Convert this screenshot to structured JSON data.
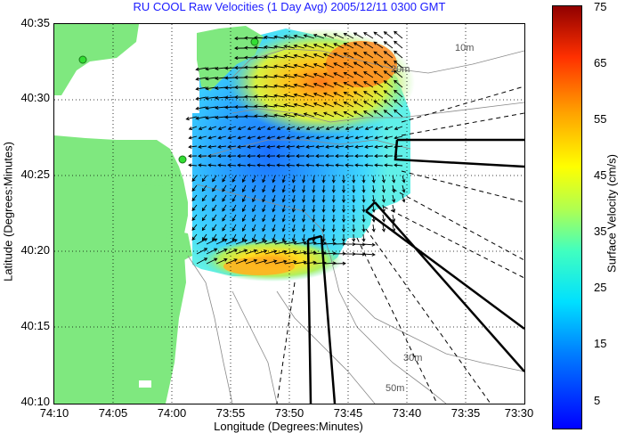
{
  "title": "RU COOL Raw Velocities (1 Day Avg) 2005/12/11 0300 GMT",
  "x_axis": {
    "label": "Longitude (Degrees:Minutes)",
    "ticks": [
      "74:10",
      "74:05",
      "74:00",
      "73:55",
      "73:50",
      "73:45",
      "73:40",
      "73:35",
      "73:30"
    ]
  },
  "y_axis": {
    "label": "Latitude (Degrees:Minutes)",
    "ticks": [
      "40:35",
      "40:30",
      "40:25",
      "40:20",
      "40:15",
      "40:10"
    ]
  },
  "colorbar": {
    "label": "Surface Velocity (cm/s)",
    "ticks": [
      "75",
      "65",
      "55",
      "45",
      "35",
      "25",
      "15",
      "5"
    ],
    "min": 0,
    "max": 75,
    "colormap": "jet"
  },
  "contour_labels": [
    "10m",
    "20m",
    "30m",
    "50m"
  ],
  "colors": {
    "land": "#7fe87f",
    "title": "#1a1aff",
    "contour": "#8a8a8a",
    "radar_sites": "#33dd33"
  },
  "grid": "dotted",
  "map_extent": {
    "lon_min": "74:10",
    "lon_max": "73:30",
    "lat_min": "40:10",
    "lat_max": "40:35"
  }
}
